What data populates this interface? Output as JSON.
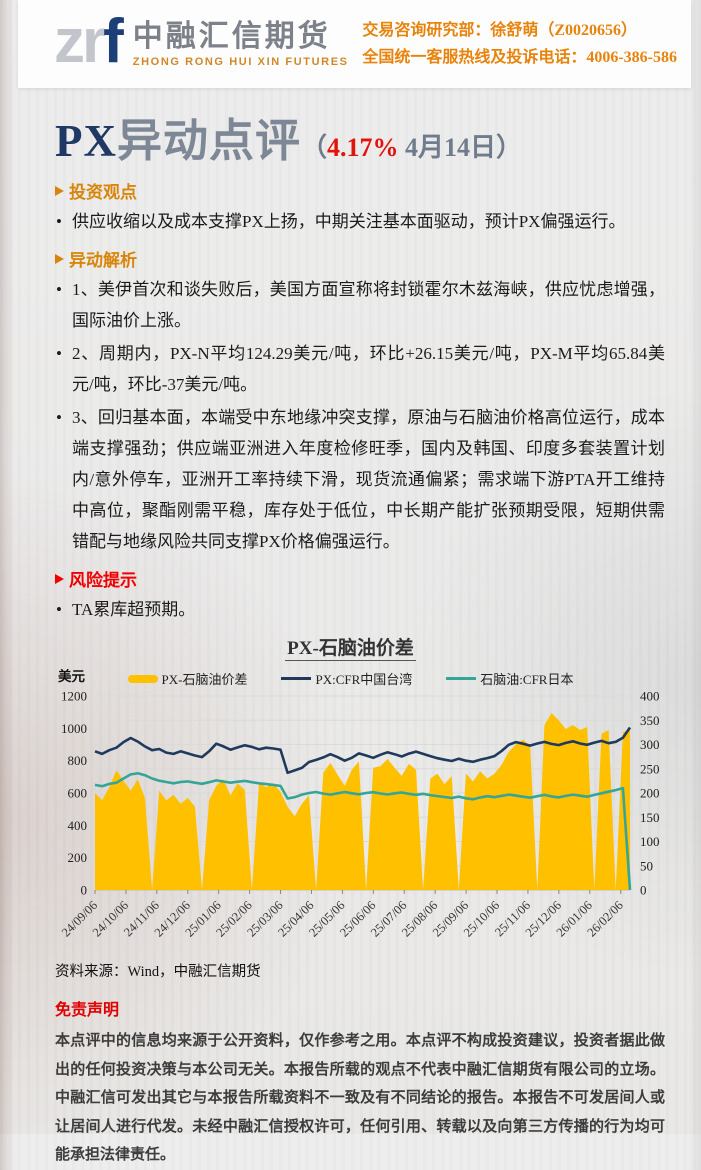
{
  "header": {
    "logo_zr": "zr",
    "logo_f": "f",
    "logo_cn": "中融汇信期货",
    "logo_en": "ZHONG RONG HUI XIN FUTURES",
    "dept_line": "交易咨询研究部：徐舒萌（Z0020656）",
    "hotline_line": "全国统一客服热线及投诉电话：4006-386-586"
  },
  "title": {
    "main_px": "PX",
    "main_rest": "异动点评",
    "paren_open": "（",
    "pct": "4.17%",
    "date_close": " 4月14日）"
  },
  "sections": {
    "bullet_char": "•",
    "view_header": "投资观点",
    "view_bullet": "供应收缩以及成本支撑PX上扬，中期关注基本面驱动，预计PX偏强运行。",
    "analysis_header": "异动解析",
    "analysis_bullets": [
      "1、美伊首次和谈失败后，美国方面宣称将封锁霍尔木兹海峡，供应忧虑增强，国际油价上涨。",
      "2、周期内，PX-N平均124.29美元/吨，环比+26.15美元/吨，PX-M平均65.84美元/吨，环比-37美元/吨。",
      "3、回归基本面，本端受中东地缘冲突支撑，原油与石脑油价格高位运行，成本端支撑强劲；供应端亚洲进入年度检修旺季，国内及韩国、印度多套装置计划内/意外停车，亚洲开工率持续下滑，现货流通偏紧；需求端下游PTA开工维持中高位，聚酯刚需平稳，库存处于低位，中长期产能扩张预期受限，短期供需错配与地缘风险共同支撑PX价格偏强运行。"
    ],
    "risk_header": "风险提示",
    "risk_bullet": "TA累库超预期。"
  },
  "chart_data": {
    "type": "combo",
    "title": "PX-石脑油价差",
    "left_axis": {
      "label": "美元",
      "min": 0,
      "max": 1200,
      "tick_step": 200
    },
    "right_axis": {
      "min": 0,
      "max": 400,
      "tick_step": 50
    },
    "grid": "horizontal",
    "legend_position": "top",
    "x_tick_labels": [
      "24/09/06",
      "24/10/06",
      "24/11/06",
      "24/12/06",
      "25/01/06",
      "25/02/06",
      "25/03/06",
      "25/04/06",
      "25/05/06",
      "25/06/06",
      "25/07/06",
      "25/08/06",
      "25/09/06",
      "25/10/06",
      "25/11/06",
      "25/12/06",
      "26/01/06",
      "26/02/06"
    ],
    "series": [
      {
        "name": "PX-石脑油价差",
        "type": "area",
        "axis": "right",
        "color": "#FFC000",
        "values": [
          200,
          185,
          212,
          247,
          225,
          205,
          228,
          190,
          0,
          205,
          185,
          196,
          178,
          190,
          172,
          0,
          185,
          215,
          228,
          195,
          220,
          206,
          0,
          222,
          212,
          220,
          202,
          172,
          152,
          178,
          195,
          0,
          242,
          262,
          238,
          215,
          248,
          265,
          0,
          252,
          255,
          270,
          252,
          235,
          260,
          248,
          0,
          230,
          240,
          218,
          235,
          0,
          240,
          224,
          245,
          230,
          240,
          258,
          285,
          300,
          310,
          298,
          0,
          340,
          365,
          350,
          332,
          340,
          330,
          336,
          0,
          322,
          330,
          0,
          325,
          332
        ]
      },
      {
        "name": "PX:CFR中国台湾",
        "type": "line",
        "axis": "left",
        "color": "#1F3A5C",
        "values": [
          858,
          842,
          865,
          880,
          915,
          940,
          918,
          888,
          865,
          872,
          850,
          842,
          858,
          845,
          832,
          822,
          858,
          905,
          888,
          868,
          882,
          895,
          885,
          870,
          880,
          875,
          868,
          725,
          740,
          755,
          792,
          805,
          820,
          840,
          822,
          800,
          818,
          845,
          832,
          818,
          836,
          852,
          840,
          826,
          844,
          856,
          842,
          828,
          815,
          806,
          798,
          812,
          800,
          793,
          806,
          816,
          828,
          860,
          898,
          915,
          905,
          893,
          906,
          916,
          904,
          896,
          910,
          920,
          906,
          898,
          912,
          922,
          908,
          916,
          942,
          1005
        ]
      },
      {
        "name": "石脑油:CFR日本",
        "type": "line",
        "axis": "left",
        "color": "#35A597",
        "values": [
          650,
          642,
          656,
          664,
          690,
          715,
          722,
          710,
          690,
          676,
          668,
          660,
          668,
          672,
          664,
          657,
          667,
          678,
          671,
          664,
          670,
          675,
          667,
          660,
          655,
          650,
          644,
          566,
          574,
          590,
          600,
          606,
          596,
          590,
          598,
          606,
          598,
          592,
          600,
          605,
          597,
          591,
          598,
          603,
          595,
          589,
          595,
          587,
          581,
          575,
          569,
          578,
          567,
          561,
          572,
          580,
          574,
          582,
          590,
          584,
          577,
          571,
          580,
          588,
          579,
          573,
          582,
          590,
          583,
          577,
          588,
          598,
          608,
          618,
          630,
          0
        ]
      }
    ]
  },
  "source_note": "资料来源：Wind，中融汇信期货",
  "disclaimer": {
    "title": "免责声明",
    "body": "本点评中的信息均来源于公开资料，仅作参考之用。本点评不构成投资建议，投资者据此做出的任何投资决策与本公司无关。本报告所载的观点不代表中融汇信期货有限公司的立场。中融汇信可发出其它与本报告所载资料不一致及有不同结论的报告。本报告不可发居间人或让居间人进行代发。未经中融汇信授权许可，任何引用、转载以及向第三方传播的行为均可能承担法律责任。"
  },
  "colors": {
    "accent_orange": "#D8860B",
    "alert_red": "#F10000",
    "title_navy": "#1F3864",
    "title_gray": "#7E8795",
    "area_yellow": "#FFC000",
    "px_line_navy": "#1F3A5C",
    "naphtha_line_teal": "#35A597",
    "header_bg": "#FDFDFD",
    "page_bg": "#EBEBEB"
  },
  "icons": {
    "section_arrow": "➢",
    "list_dot": "•"
  }
}
